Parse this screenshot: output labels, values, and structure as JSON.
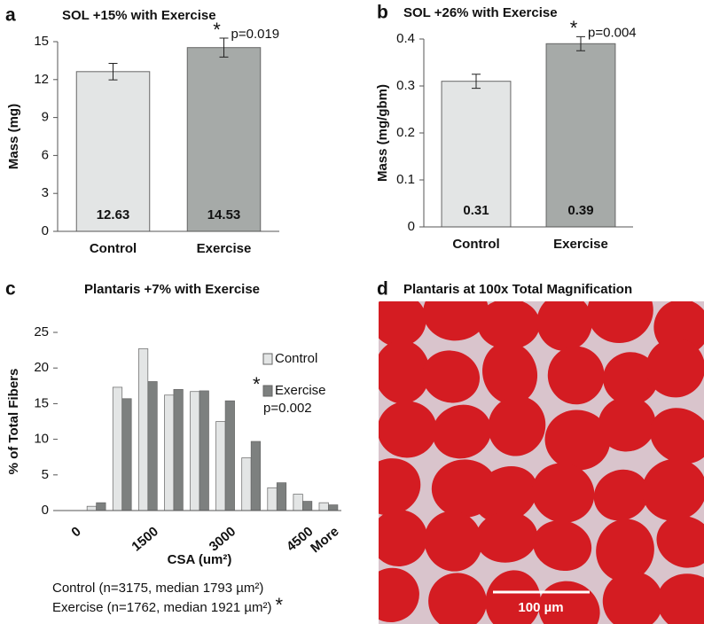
{
  "chart_data": [
    {
      "type": "bar",
      "panel_label": "a",
      "title": "SOL +15% with Exercise",
      "y_label": "Mass (mg)",
      "categories": [
        "Control",
        "Exercise"
      ],
      "values": [
        12.63,
        14.53
      ],
      "errors": [
        0.65,
        0.75
      ],
      "colors": [
        "#e3e5e5",
        "#a6aaa8"
      ],
      "ylim": [
        0,
        15
      ],
      "yticks": [
        0,
        3,
        6,
        9,
        12,
        15
      ],
      "star": "*",
      "p_value": "p=0.019"
    },
    {
      "type": "bar",
      "panel_label": "b",
      "title": "SOL +26% with Exercise",
      "y_label": "Mass (mg/gbm)",
      "categories": [
        "Control",
        "Exercise"
      ],
      "values": [
        0.31,
        0.39
      ],
      "errors": [
        0.015,
        0.015
      ],
      "colors": [
        "#e3e5e5",
        "#a6aaa8"
      ],
      "ylim": [
        0,
        0.4
      ],
      "yticks": [
        0,
        0.1,
        0.2,
        0.3,
        0.4
      ],
      "star": "*",
      "p_value": "p=0.004"
    },
    {
      "type": "bar",
      "panel_label": "c",
      "title": "Plantaris +7% with Exercise",
      "y_label": "% of Total Fibers",
      "x_label": "CSA (um²)",
      "categories": [
        "0",
        null,
        null,
        "1500",
        null,
        null,
        "3000",
        null,
        null,
        "4500",
        "More"
      ],
      "series": [
        {
          "name": "Control",
          "color": "#e3e5e5",
          "values": [
            0,
            0.6,
            17.3,
            22.7,
            16.2,
            16.7,
            12.5,
            7.4,
            3.2,
            2.3,
            1.1
          ]
        },
        {
          "name": "Exercise",
          "color": "#7d807f",
          "values": [
            0,
            1.1,
            15.7,
            18.1,
            17.0,
            16.8,
            15.4,
            9.7,
            3.9,
            1.3,
            0.8
          ]
        }
      ],
      "ylim": [
        0,
        25
      ],
      "yticks": [
        0,
        5,
        10,
        15,
        20,
        25
      ],
      "legend": "upper right",
      "star": "*",
      "p_value": "p=0.002",
      "notes": [
        "Control (n=3175, median 1793 µm²)",
        "Exercise (n=1762, median 1921 µm²)"
      ],
      "notes_star": "*"
    }
  ],
  "image_panel": {
    "panel_label": "d",
    "title": "Plantaris at 100x Total Magnification",
    "scale_label": "100 µm"
  }
}
